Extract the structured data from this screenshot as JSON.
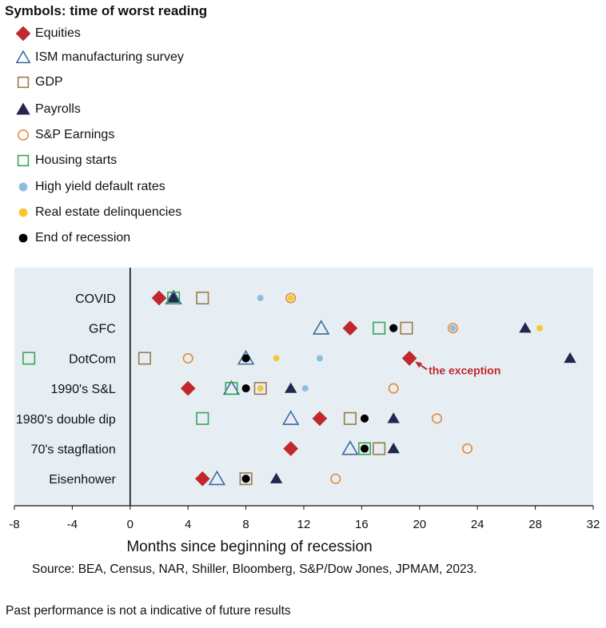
{
  "legend": {
    "title": "Symbols: time of worst reading",
    "items": [
      {
        "key": "equities",
        "label": "Equities",
        "shape": "diamond",
        "fill": "#c0282e",
        "stroke": "#c0282e"
      },
      {
        "key": "ism",
        "label": "ISM manufacturing survey",
        "shape": "triangle-open",
        "fill": "none",
        "stroke": "#3b6aa0"
      },
      {
        "key": "gdp",
        "label": "GDP",
        "shape": "square-open",
        "fill": "none",
        "stroke": "#9c7a4a"
      },
      {
        "key": "payrolls",
        "label": "Payrolls",
        "shape": "triangle",
        "fill": "#23264f",
        "stroke": "#23264f"
      },
      {
        "key": "sp_earnings",
        "label": "S&P Earnings",
        "shape": "circle-open",
        "fill": "none",
        "stroke": "#e38a3a"
      },
      {
        "key": "housing",
        "label": "Housing starts",
        "shape": "square-open",
        "fill": "none",
        "stroke": "#3aa35a"
      },
      {
        "key": "hy_default",
        "label": "High yield default rates",
        "shape": "circle",
        "fill": "#8cbedc",
        "stroke": "#8cbedc"
      },
      {
        "key": "re_delinq",
        "label": "Real estate delinquencies",
        "shape": "circle",
        "fill": "#f5c92e",
        "stroke": "#f5c92e"
      },
      {
        "key": "end_recession",
        "label": "End of recession",
        "shape": "circle",
        "fill": "#000000",
        "stroke": "#000000"
      }
    ]
  },
  "chart_data": {
    "type": "scatter",
    "title": "Symbols: time of worst reading",
    "xlabel": "Months since beginning of recession",
    "ylabel": "",
    "xlim": [
      -8,
      32
    ],
    "xticks": [
      -8,
      -4,
      0,
      4,
      8,
      12,
      16,
      20,
      24,
      28,
      32
    ],
    "categories": [
      "COVID",
      "GFC",
      "DotCom",
      "1990's S&L",
      "1980's double dip",
      "70's stagflation",
      "Eisenhower"
    ],
    "series": [
      {
        "key": "equities",
        "name": "Equities",
        "values": [
          2,
          15.2,
          19.3,
          4,
          13.1,
          11.1,
          5
        ]
      },
      {
        "key": "ism",
        "name": "ISM manufacturing survey",
        "values": [
          3,
          13.2,
          8,
          7,
          11.1,
          15.2,
          6
        ]
      },
      {
        "key": "gdp",
        "name": "GDP",
        "values": [
          5,
          19.1,
          1,
          9,
          15.2,
          17.2,
          8
        ]
      },
      {
        "key": "payrolls",
        "name": "Payrolls",
        "values": [
          3,
          27.3,
          30.4,
          11.1,
          18.2,
          18.2,
          10.1
        ]
      },
      {
        "key": "sp_earnings",
        "name": "S&P Earnings",
        "values": [
          11.1,
          22.3,
          4,
          18.2,
          21.2,
          23.3,
          14.2
        ]
      },
      {
        "key": "housing",
        "name": "Housing starts",
        "values": [
          3,
          17.2,
          -7,
          7,
          5,
          16.2,
          null
        ]
      },
      {
        "key": "hy_default",
        "name": "High yield default rates",
        "values": [
          9,
          22.3,
          13.1,
          12.1,
          null,
          null,
          null
        ]
      },
      {
        "key": "re_delinq",
        "name": "Real estate delinquencies",
        "values": [
          11.1,
          28.3,
          10.1,
          9,
          null,
          null,
          null
        ]
      },
      {
        "key": "end_recession",
        "name": "End of recession",
        "values": [
          null,
          18.2,
          8,
          8,
          16.2,
          16.2,
          8
        ]
      }
    ],
    "annotation": {
      "text": "the exception",
      "category": "DotCom",
      "x": 19.3,
      "color": "#c0282e"
    },
    "source": "Source: BEA, Census, NAR, Shiller, Bloomberg, S&P/Dow Jones, JPMAM, 2023.",
    "disclaimer": "Past performance is not a indicative of future results",
    "plot_background": "#e6eef3"
  }
}
